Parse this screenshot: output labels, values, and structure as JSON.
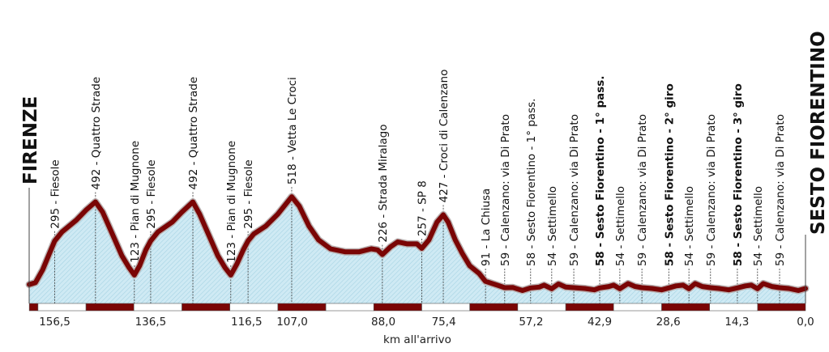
{
  "chart_data": {
    "type": "area",
    "title": "",
    "xlabel": "km all'arrivo",
    "ylabel": "",
    "x_reversed": true,
    "xlim": [
      161.8,
      0
    ],
    "start_town": "FIRENZE",
    "finish_town": "SESTO FIORENTINO",
    "colors": {
      "line": "#7a0505",
      "fill": "#cfeaf4",
      "hatch": "#9fcfe0",
      "bar": "#7a0505"
    },
    "x_ticks": [
      "156,5",
      "136,5",
      "116,5",
      "107,0",
      "88,0",
      "75,4",
      "57,2",
      "42,9",
      "28,6",
      "14,3",
      "0,0"
    ],
    "x_tick_values": [
      156.5,
      136.5,
      116.5,
      107.0,
      88.0,
      75.4,
      57.2,
      42.9,
      28.6,
      14.3,
      0.0
    ],
    "km_bar_segment": 10,
    "profile": [
      [
        161.8,
        75
      ],
      [
        160.5,
        85
      ],
      [
        159,
        150
      ],
      [
        157.8,
        220
      ],
      [
        156.5,
        295
      ],
      [
        155,
        340
      ],
      [
        152,
        400
      ],
      [
        150,
        450
      ],
      [
        148,
        492
      ],
      [
        146.5,
        440
      ],
      [
        144.5,
        330
      ],
      [
        142.5,
        220
      ],
      [
        141,
        160
      ],
      [
        139.9,
        123
      ],
      [
        138.8,
        170
      ],
      [
        137.5,
        250
      ],
      [
        136.5,
        295
      ],
      [
        135,
        340
      ],
      [
        132,
        390
      ],
      [
        130,
        440
      ],
      [
        127.7,
        492
      ],
      [
        126.3,
        430
      ],
      [
        124.3,
        320
      ],
      [
        122.5,
        220
      ],
      [
        121,
        160
      ],
      [
        119.8,
        123
      ],
      [
        118.5,
        180
      ],
      [
        117.2,
        250
      ],
      [
        116.2,
        295
      ],
      [
        115,
        330
      ],
      [
        112.5,
        370
      ],
      [
        110,
        430
      ],
      [
        107.1,
        518
      ],
      [
        105.5,
        470
      ],
      [
        103.5,
        370
      ],
      [
        101.5,
        300
      ],
      [
        99,
        255
      ],
      [
        96,
        240
      ],
      [
        93,
        240
      ],
      [
        90.5,
        255
      ],
      [
        89.2,
        250
      ],
      [
        88.2,
        226
      ],
      [
        86.5,
        265
      ],
      [
        85,
        290
      ],
      [
        83,
        280
      ],
      [
        81,
        280
      ],
      [
        80,
        257
      ],
      [
        78.5,
        300
      ],
      [
        76.8,
        390
      ],
      [
        75.5,
        427
      ],
      [
        74.5,
        390
      ],
      [
        73,
        300
      ],
      [
        71.5,
        230
      ],
      [
        70,
        170
      ],
      [
        68,
        130
      ],
      [
        66.7,
        91
      ],
      [
        64,
        70
      ],
      [
        62.7,
        59
      ],
      [
        61,
        60
      ],
      [
        59,
        45
      ],
      [
        57.3,
        58
      ],
      [
        55.5,
        62
      ],
      [
        54.5,
        72
      ],
      [
        52.9,
        54
      ],
      [
        51.5,
        78
      ],
      [
        50,
        62
      ],
      [
        48.3,
        59
      ],
      [
        46,
        55
      ],
      [
        44,
        48
      ],
      [
        42.9,
        58
      ],
      [
        41,
        65
      ],
      [
        40,
        72
      ],
      [
        38.7,
        54
      ],
      [
        37,
        80
      ],
      [
        35.5,
        65
      ],
      [
        34.1,
        59
      ],
      [
        32,
        55
      ],
      [
        30,
        48
      ],
      [
        28.5,
        58
      ],
      [
        27,
        68
      ],
      [
        25.5,
        72
      ],
      [
        24.3,
        54
      ],
      [
        23,
        80
      ],
      [
        21.5,
        65
      ],
      [
        19.8,
        59
      ],
      [
        18,
        55
      ],
      [
        16,
        48
      ],
      [
        14.2,
        58
      ],
      [
        12.5,
        68
      ],
      [
        11.3,
        72
      ],
      [
        10,
        54
      ],
      [
        8.8,
        80
      ],
      [
        7,
        65
      ],
      [
        5.4,
        59
      ],
      [
        3.5,
        55
      ],
      [
        1.5,
        45
      ],
      [
        0,
        55
      ]
    ],
    "markers": [
      {
        "km": 156.5,
        "elev": 295,
        "text": "295 - Fiesole",
        "bold": false
      },
      {
        "km": 148.0,
        "elev": 492,
        "text": "492 - Quattro Strade",
        "bold": false
      },
      {
        "km": 139.9,
        "elev": 123,
        "text": "123 - Pian di Mugnone",
        "bold": false
      },
      {
        "km": 136.5,
        "elev": 295,
        "text": "295 - Fiesole",
        "bold": false
      },
      {
        "km": 127.7,
        "elev": 492,
        "text": "492 - Quattro Strade",
        "bold": false
      },
      {
        "km": 119.8,
        "elev": 123,
        "text": "123 - Pian di Mugnone",
        "bold": false
      },
      {
        "km": 116.2,
        "elev": 295,
        "text": "295 - Fiesole",
        "bold": false
      },
      {
        "km": 107.1,
        "elev": 518,
        "text": "518 - Vetta Le Croci",
        "bold": false
      },
      {
        "km": 88.2,
        "elev": 226,
        "text": "226 - Strada Miralago",
        "bold": false
      },
      {
        "km": 80.0,
        "elev": 257,
        "text": "257 - SP 8",
        "bold": false
      },
      {
        "km": 75.5,
        "elev": 427,
        "text": "427 - Croci di Calenzano",
        "bold": false
      },
      {
        "km": 66.7,
        "elev": 91,
        "text": "91 - La Chiusa",
        "bold": false
      },
      {
        "km": 62.7,
        "elev": 59,
        "text": "59 - Calenzano: via Di Prato",
        "bold": false
      },
      {
        "km": 57.3,
        "elev": 58,
        "text": "58 - Sesto Fiorentino - 1° pass.",
        "bold": false
      },
      {
        "km": 52.9,
        "elev": 54,
        "text": "54 - Settimello",
        "bold": false
      },
      {
        "km": 48.3,
        "elev": 59,
        "text": "59 - Calenzano: via Di Prato",
        "bold": false
      },
      {
        "km": 42.9,
        "elev": 58,
        "text": "58 - Sesto Fiorentino - 1° pass.",
        "bold": true
      },
      {
        "km": 38.7,
        "elev": 54,
        "text": "54 - Settimello",
        "bold": false
      },
      {
        "km": 34.1,
        "elev": 59,
        "text": "59 - Calenzano: via Di Prato",
        "bold": false
      },
      {
        "km": 28.5,
        "elev": 58,
        "text": "58 - Sesto Fiorentino - 2° giro",
        "bold": true
      },
      {
        "km": 24.3,
        "elev": 54,
        "text": "54 - Settimello",
        "bold": false
      },
      {
        "km": 19.8,
        "elev": 59,
        "text": "59 - Calenzano: via Di Prato",
        "bold": false
      },
      {
        "km": 14.2,
        "elev": 58,
        "text": "58 - Sesto Fiorentino - 3° giro",
        "bold": true
      },
      {
        "km": 10.0,
        "elev": 54,
        "text": "54 - Settimello",
        "bold": false
      },
      {
        "km": 5.4,
        "elev": 59,
        "text": "59 - Calenzano: via Di Prato",
        "bold": false
      }
    ]
  }
}
